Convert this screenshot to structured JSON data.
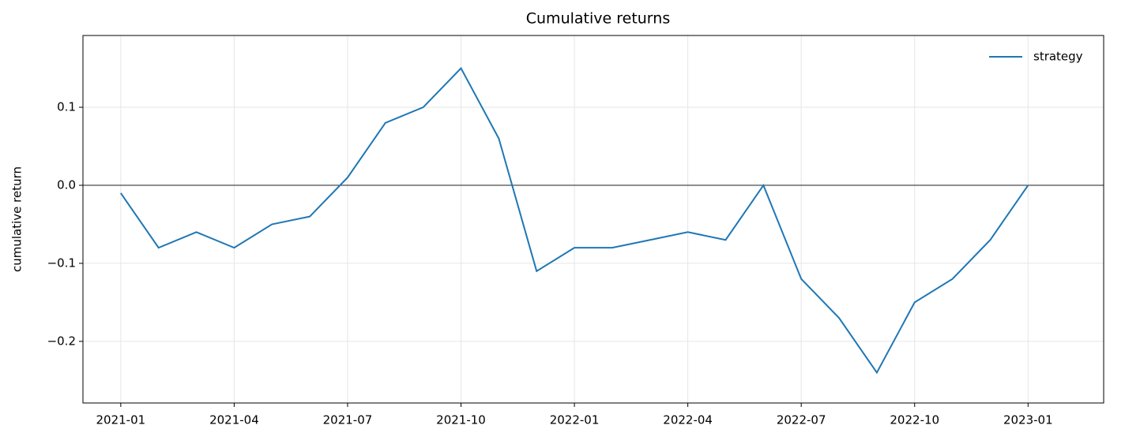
{
  "chart_data": {
    "type": "line",
    "title": "Cumulative returns",
    "ylabel": "cumulative return",
    "x": [
      "2021-01",
      "2021-02",
      "2021-03",
      "2021-04",
      "2021-05",
      "2021-06",
      "2021-07",
      "2021-08",
      "2021-09",
      "2021-10",
      "2021-11",
      "2021-12",
      "2022-01",
      "2022-02",
      "2022-03",
      "2022-04",
      "2022-05",
      "2022-06",
      "2022-07",
      "2022-08",
      "2022-09",
      "2022-10",
      "2022-11",
      "2022-12",
      "2023-01"
    ],
    "series": [
      {
        "name": "strategy",
        "color": "#1f77b4",
        "values": [
          -0.01,
          -0.08,
          -0.06,
          -0.08,
          -0.05,
          -0.04,
          0.01,
          0.08,
          0.1,
          0.15,
          0.06,
          -0.11,
          -0.08,
          -0.08,
          -0.07,
          -0.06,
          -0.07,
          0.0,
          -0.12,
          -0.17,
          -0.24,
          -0.15,
          -0.12,
          -0.07,
          0.0
        ]
      }
    ],
    "xlim": [
      "2020-12",
      "2023-03"
    ],
    "xticks": [
      "2021-01",
      "2021-04",
      "2021-07",
      "2021-10",
      "2022-01",
      "2022-04",
      "2022-07",
      "2022-10",
      "2023-01"
    ],
    "ylim": [
      -0.279,
      0.192
    ],
    "yticks": [
      {
        "value": -0.2,
        "label": "−0.2"
      },
      {
        "value": -0.1,
        "label": "−0.1"
      },
      {
        "value": 0,
        "label": "0.0"
      },
      0.1
    ],
    "hline": 0,
    "grid": true,
    "legend": "upper right"
  }
}
